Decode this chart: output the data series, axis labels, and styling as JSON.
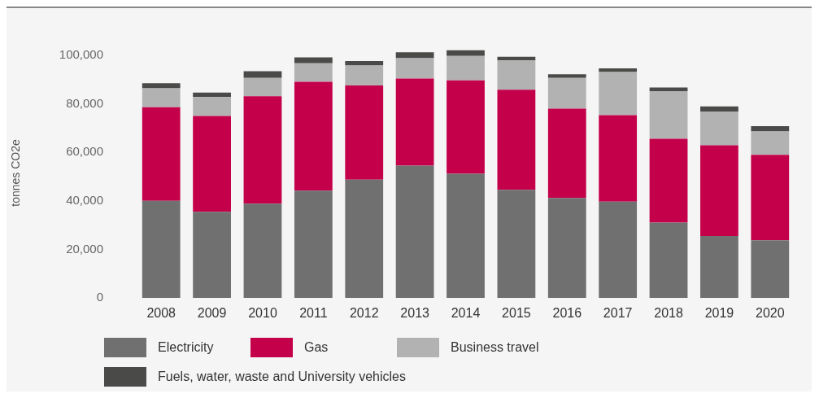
{
  "chart_data": {
    "type": "bar",
    "stacked": true,
    "ylabel": "tonnes CO2e",
    "categories": [
      "2008",
      "2009",
      "2010",
      "2011",
      "2012",
      "2013",
      "2014",
      "2015",
      "2016",
      "2017",
      "2018",
      "2019",
      "2020"
    ],
    "series": [
      {
        "name": "Electricity",
        "color": "#707070",
        "values": [
          40000,
          35500,
          38800,
          44200,
          48700,
          54500,
          51200,
          44500,
          41200,
          39700,
          31000,
          25500,
          23700
        ]
      },
      {
        "name": "Gas",
        "color": "#c4004a",
        "values": [
          38600,
          39500,
          44300,
          44900,
          38900,
          35900,
          38500,
          41300,
          36800,
          35600,
          34600,
          37400,
          35300
        ]
      },
      {
        "name": "Business travel",
        "color": "#b2b2b2",
        "values": [
          7800,
          7800,
          7600,
          7600,
          8200,
          8400,
          10000,
          12100,
          12700,
          17800,
          19600,
          13900,
          9600
        ]
      },
      {
        "name": "Fuels, water, waste and University vehicles",
        "color": "#4a4a48",
        "values": [
          2100,
          1800,
          2700,
          2400,
          1800,
          2400,
          2400,
          1500,
          1500,
          1500,
          1500,
          2100,
          2200
        ]
      }
    ],
    "ylim": [
      0,
      103000
    ],
    "yticks": [
      {
        "value": 0,
        "label": "0"
      },
      {
        "value": 20000,
        "label": "20,000"
      },
      {
        "value": 40000,
        "label": "40,000"
      },
      {
        "value": 60000,
        "label": "60,000"
      },
      {
        "value": 80000,
        "label": "80,000"
      },
      {
        "value": 100000,
        "label": "100,000"
      }
    ],
    "grid": false,
    "legend": "bottom"
  }
}
